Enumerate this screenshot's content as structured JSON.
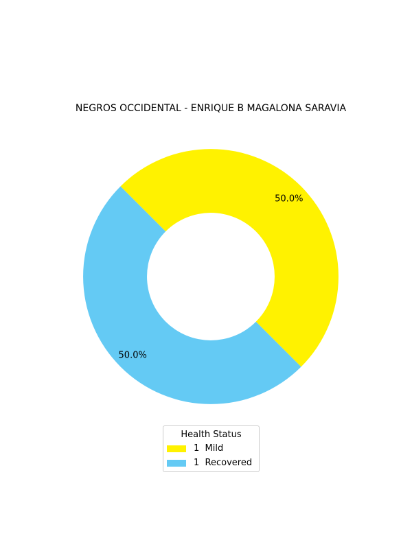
{
  "chart_data": {
    "type": "pie",
    "donut": true,
    "title": "NEGROS OCCIDENTAL - ENRIQUE B MAGALONA SARAVIA",
    "slices": [
      {
        "label": "Mild",
        "count": 1,
        "value": 50.0,
        "pct_label": "50.0%",
        "color": "#FFF200"
      },
      {
        "label": "Recovered",
        "count": 1,
        "value": 50.0,
        "pct_label": "50.0%",
        "color": "#64CAF4"
      }
    ],
    "legend": {
      "title": "Health Status",
      "placement": "bottom-center",
      "entries": [
        "1  Mild",
        "1  Recovered"
      ]
    }
  }
}
